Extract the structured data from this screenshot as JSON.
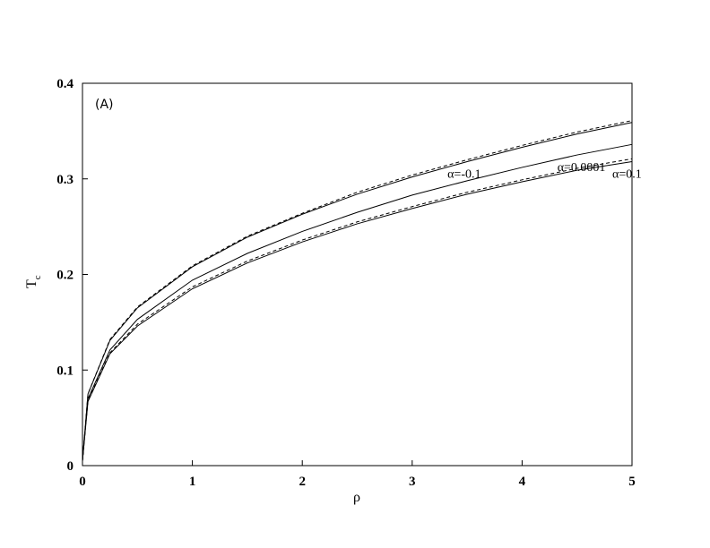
{
  "chart_data": {
    "type": "line",
    "annotation": "(A)",
    "xlabel": "ρ",
    "ylabel": {
      "text": "T",
      "subscript": "c"
    },
    "x": [
      0,
      0.05,
      0.25,
      0.5,
      1,
      1.5,
      2,
      2.5,
      3,
      3.5,
      4,
      4.5,
      5
    ],
    "series": [
      {
        "name": "α=-0.1",
        "color": "#000000",
        "style": "solid",
        "values": [
          0.005,
          0.075,
          0.131,
          0.165,
          0.208,
          0.239,
          0.263,
          0.284,
          0.302,
          0.318,
          0.333,
          0.347,
          0.359
        ]
      },
      {
        "color": "#000000",
        "style": "dashed",
        "values": [
          0.005,
          0.075,
          0.132,
          0.166,
          0.209,
          0.24,
          0.264,
          0.286,
          0.304,
          0.32,
          0.335,
          0.349,
          0.361
        ]
      },
      {
        "name": "α=0.0001",
        "color": "#000000",
        "style": "solid",
        "values": [
          0.005,
          0.07,
          0.121,
          0.153,
          0.194,
          0.222,
          0.245,
          0.265,
          0.283,
          0.298,
          0.312,
          0.325,
          0.336
        ]
      },
      {
        "name": "α=0.1",
        "color": "#000000",
        "style": "solid",
        "values": [
          0.005,
          0.067,
          0.117,
          0.146,
          0.185,
          0.212,
          0.234,
          0.253,
          0.269,
          0.284,
          0.297,
          0.309,
          0.318
        ]
      },
      {
        "color": "#000000",
        "style": "dashed",
        "values": [
          0.005,
          0.068,
          0.118,
          0.148,
          0.187,
          0.214,
          0.236,
          0.255,
          0.271,
          0.286,
          0.299,
          0.311,
          0.321
        ]
      }
    ],
    "xlim": [
      0,
      5
    ],
    "xticks": [
      0,
      1,
      2,
      3,
      4,
      5
    ],
    "ylim": [
      0,
      0.4
    ],
    "yticks": [
      0,
      0.1,
      0.2,
      0.3,
      0.4
    ],
    "grid": false
  }
}
